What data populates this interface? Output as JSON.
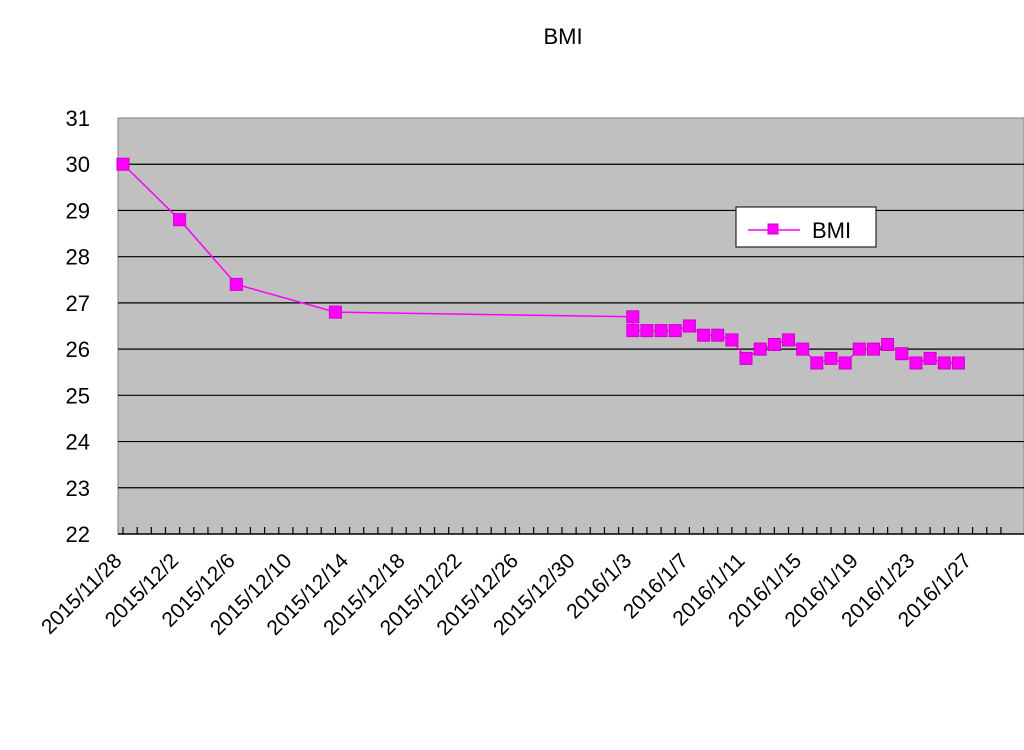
{
  "chart_data": {
    "type": "line",
    "title": "BMI",
    "xlabel": "",
    "ylabel": "",
    "x_axis_type": "date",
    "x_range": [
      "2015-11-28",
      "2016-01-29"
    ],
    "xtick_labels": [
      "2015/11/28",
      "2015/12/2",
      "2015/12/6",
      "2015/12/10",
      "2015/12/14",
      "2015/12/18",
      "2015/12/22",
      "2015/12/26",
      "2015/12/30",
      "2016/1/3",
      "2016/1/7",
      "2016/1/11",
      "2016/1/15",
      "2016/1/19",
      "2016/1/23",
      "2016/1/27"
    ],
    "xtick_dates": [
      "2015-11-28",
      "2015-12-02",
      "2015-12-06",
      "2015-12-10",
      "2015-12-14",
      "2015-12-18",
      "2015-12-22",
      "2015-12-26",
      "2015-12-30",
      "2016-01-03",
      "2016-01-07",
      "2016-01-11",
      "2016-01-15",
      "2016-01-19",
      "2016-01-23",
      "2016-01-27"
    ],
    "ylim": [
      22,
      31
    ],
    "yticks": [
      22,
      23,
      24,
      25,
      26,
      27,
      28,
      29,
      30,
      31
    ],
    "grid": "horizontal",
    "legend": "right",
    "plot_background": "#c0c0c0",
    "series": [
      {
        "name": "BMI",
        "color": "#ff00ff",
        "marker": "square",
        "x": [
          "2015-11-28",
          "2015-12-02",
          "2015-12-06",
          "2015-12-13",
          "2016-01-03",
          "2016-01-03",
          "2016-01-04",
          "2016-01-05",
          "2016-01-06",
          "2016-01-07",
          "2016-01-08",
          "2016-01-09",
          "2016-01-10",
          "2016-01-11",
          "2016-01-12",
          "2016-01-13",
          "2016-01-14",
          "2016-01-15",
          "2016-01-16",
          "2016-01-17",
          "2016-01-18",
          "2016-01-19",
          "2016-01-20",
          "2016-01-21",
          "2016-01-22",
          "2016-01-23",
          "2016-01-24",
          "2016-01-25",
          "2016-01-26"
        ],
        "y": [
          30.0,
          28.8,
          27.4,
          26.8,
          26.7,
          26.4,
          26.4,
          26.4,
          26.4,
          26.5,
          26.3,
          26.3,
          26.2,
          25.8,
          26.0,
          26.1,
          26.2,
          26.0,
          25.7,
          25.8,
          25.7,
          26.0,
          26.0,
          26.1,
          25.9,
          25.7,
          25.8,
          25.7,
          25.7
        ]
      }
    ]
  }
}
